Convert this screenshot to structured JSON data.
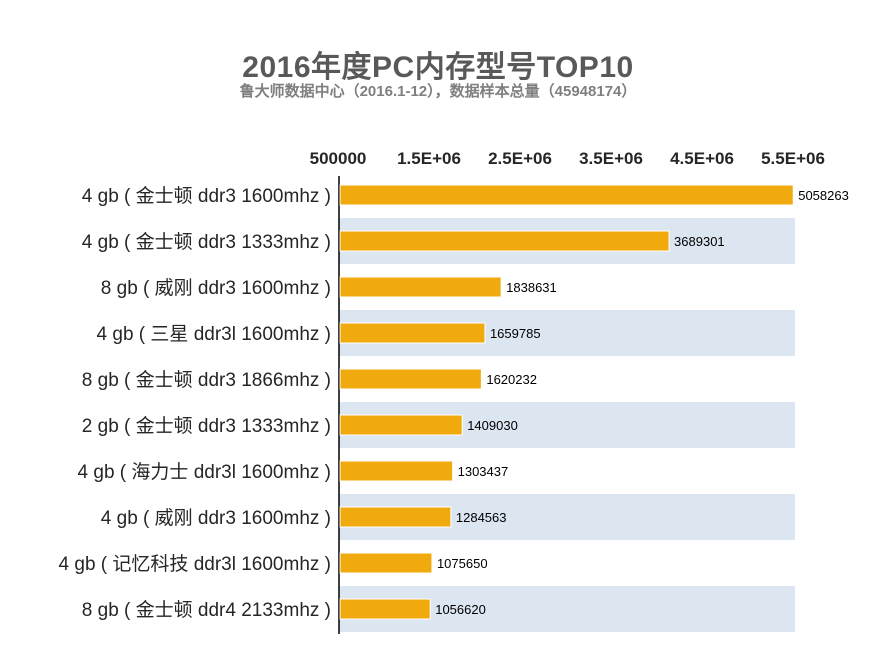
{
  "chart_data": {
    "type": "bar",
    "orientation": "horizontal",
    "title": "2016年度PC内存型号TOP10",
    "subtitle": "鲁大师数据中心（2016.1-12），数据样本总量（45948174）",
    "categories": [
      "4 gb ( 金士顿 ddr3 1600mhz )",
      "4 gb ( 金士顿 ddr3 1333mhz )",
      "8 gb ( 威刚 ddr3 1600mhz )",
      "4 gb ( 三星 ddr3l 1600mhz )",
      "8 gb ( 金士顿 ddr3 1866mhz )",
      "2 gb ( 金士顿 ddr3 1333mhz )",
      "4 gb ( 海力士 ddr3l 1600mhz )",
      "4 gb ( 威刚 ddr3 1600mhz )",
      "4 gb ( 记忆科技 ddr3l 1600mhz )",
      "8 gb ( 金士顿 ddr4 2133mhz )"
    ],
    "values": [
      5058263,
      3689301,
      1838631,
      1659785,
      1620232,
      1409030,
      1303437,
      1284563,
      1075650,
      1056620
    ],
    "value_labels": [
      "5058263",
      "3689301",
      "1838631",
      "1659785",
      "1620232",
      "1409030",
      "1303437",
      "1284563",
      "1075650",
      "1056620"
    ],
    "axis": {
      "position": "top",
      "min": 500000,
      "max": 5500000,
      "ticks": [
        500000,
        1500000,
        2500000,
        3500000,
        4500000,
        5500000
      ],
      "tick_labels": [
        "500000",
        "1.5E+06",
        "2.5E+06",
        "3.5E+06",
        "4.5E+06",
        "5.5E+06"
      ]
    },
    "colors": {
      "bar": "#F0AA0E",
      "bar_stroke": "#ffffff",
      "band": "#DCE6F1",
      "axis_line": "#000000",
      "label_text": "#262626",
      "value_text": "#000000"
    },
    "grid": false,
    "legend": "none"
  }
}
